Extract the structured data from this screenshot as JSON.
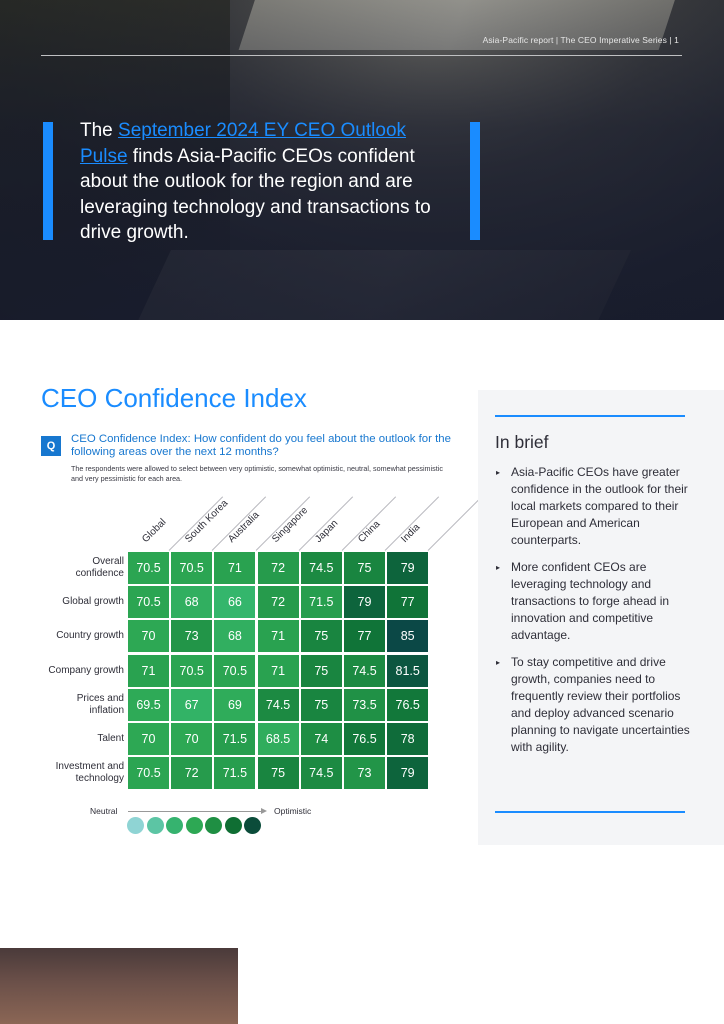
{
  "header": {
    "running_head": "Asia-Pacific report  |  The CEO Imperative Series  |  1"
  },
  "hero": {
    "quote_prefix": "The ",
    "quote_link": "September 2024 EY CEO Outlook Pulse",
    "quote_rest": " finds Asia-Pacific CEOs confident about the outlook for the region and are leveraging technology and transactions to drive growth.",
    "link_color": "#1a8cff"
  },
  "section": {
    "title": "CEO Confidence Index"
  },
  "question": {
    "badge": "Q",
    "text": "CEO Confidence Index: How confident do you feel about the outlook for the following areas over the next 12 months?",
    "note": "The respondents were allowed to select between very optimistic, somewhat optimistic, neutral, somewhat pessimistic and very pessimistic for each area."
  },
  "chart_data": {
    "type": "heatmap",
    "columns": [
      "Global",
      "South Korea",
      "Australia",
      "Singapore",
      "Japan",
      "China",
      "India"
    ],
    "rows": [
      {
        "label": "Overall confidence",
        "values": [
          70.5,
          70.5,
          71,
          72,
          74.5,
          75,
          79
        ]
      },
      {
        "label": "Global growth",
        "values": [
          70.5,
          68,
          66,
          72,
          71.5,
          79,
          77
        ]
      },
      {
        "label": "Country growth",
        "values": [
          70,
          73,
          68,
          71,
          75,
          77,
          85
        ]
      },
      {
        "label": "Company growth",
        "values": [
          71,
          70.5,
          70.5,
          71,
          75,
          74.5,
          81.5
        ]
      },
      {
        "label": "Prices and inflation",
        "values": [
          69.5,
          67,
          69,
          74.5,
          75,
          73.5,
          76.5
        ]
      },
      {
        "label": "Talent",
        "values": [
          70,
          70,
          71.5,
          68.5,
          74,
          76.5,
          78
        ]
      },
      {
        "label": "Investment and technology",
        "values": [
          70.5,
          72,
          71.5,
          75,
          74.5,
          73,
          79
        ]
      }
    ],
    "legend": {
      "low_label": "Neutral",
      "high_label": "Optimistic",
      "scale_colors": [
        "#8fd4d4",
        "#5cc5a4",
        "#36b36f",
        "#2da854",
        "#1f8f43",
        "#0f6e33",
        "#0b4c3a"
      ]
    }
  },
  "in_brief": {
    "title": "In brief",
    "bullet_glyph": "▸",
    "items": [
      "Asia-Pacific CEOs have greater confidence in the outlook for their local markets compared to their European and American counterparts.",
      "More confident CEOs are leveraging technology and transactions to forge ahead in innovation and competitive advantage.",
      "To stay competitive and drive growth, companies need to frequently review their portfolios and deploy advanced scenario planning to navigate uncertainties with agility."
    ],
    "accent_color": "#1a8cff"
  }
}
